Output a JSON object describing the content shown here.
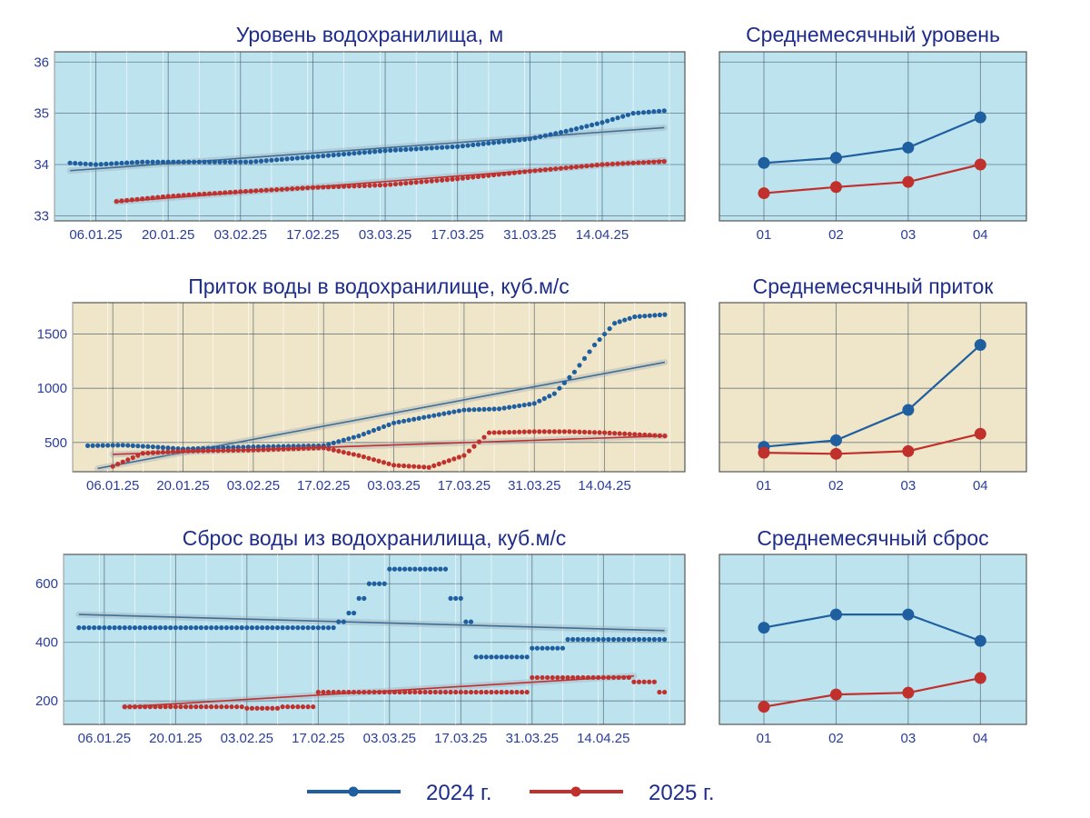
{
  "colors": {
    "blue": "#1f5fa0",
    "red": "#c0302c",
    "panel_blue": "#bde3ef",
    "panel_tan": "#efe6c9",
    "trend": "#3f6f93"
  },
  "legend": [
    {
      "label": "2024 г.",
      "color": "#1f5fa0"
    },
    {
      "label": "2025 г.",
      "color": "#c0302c"
    }
  ],
  "chart_data": [
    {
      "id": "level_daily",
      "type": "scatter",
      "title": "Уровень водохранилища, м",
      "background": "light-blue",
      "grid": true,
      "x_type": "date",
      "xlim": [
        "2024-12-29",
        "2025-04-30"
      ],
      "x_ticks": [
        {
          "label": "06.01.25",
          "date": "2025-01-06"
        },
        {
          "label": "20.01.25",
          "date": "2025-01-20"
        },
        {
          "label": "03.02.25",
          "date": "2025-02-03"
        },
        {
          "label": "17.02.25",
          "date": "2025-02-17"
        },
        {
          "label": "03.03.25",
          "date": "2025-03-03"
        },
        {
          "label": "17.03.25",
          "date": "2025-03-17"
        },
        {
          "label": "31.03.25",
          "date": "2025-03-31"
        },
        {
          "label": "14.04.25",
          "date": "2025-04-14"
        }
      ],
      "y_ticks": [
        33,
        34,
        35,
        36
      ],
      "ylim": [
        32.9,
        36.2
      ],
      "series": [
        {
          "name": "2024 г.",
          "color": "#1f5fa0",
          "x_start": "2025-01-01",
          "x_end": "2025-04-26",
          "interp": "linear",
          "points": [
            [
              "2025-01-01",
              34.03
            ],
            [
              "2025-01-06",
              34.0
            ],
            [
              "2025-01-15",
              34.05
            ],
            [
              "2025-01-25",
              34.05
            ],
            [
              "2025-02-05",
              34.05
            ],
            [
              "2025-02-17",
              34.15
            ],
            [
              "2025-03-03",
              34.27
            ],
            [
              "2025-03-17",
              34.35
            ],
            [
              "2025-03-31",
              34.5
            ],
            [
              "2025-04-07",
              34.65
            ],
            [
              "2025-04-14",
              34.82
            ],
            [
              "2025-04-20",
              35.0
            ],
            [
              "2025-04-26",
              35.05
            ]
          ]
        },
        {
          "name": "2025 г.",
          "color": "#c0302c",
          "x_start": "2025-01-10",
          "x_end": "2025-04-26",
          "interp": "linear",
          "points": [
            [
              "2025-01-10",
              33.28
            ],
            [
              "2025-01-20",
              33.38
            ],
            [
              "2025-02-03",
              33.47
            ],
            [
              "2025-02-17",
              33.55
            ],
            [
              "2025-03-03",
              33.6
            ],
            [
              "2025-03-17",
              33.72
            ],
            [
              "2025-03-31",
              33.87
            ],
            [
              "2025-04-14",
              34.0
            ],
            [
              "2025-04-26",
              34.06
            ]
          ]
        }
      ],
      "trends": [
        {
          "color": "#3f6f93",
          "from": [
            "2025-01-01",
            33.88
          ],
          "to": [
            "2025-04-26",
            34.72
          ]
        },
        {
          "color": "#c0302c",
          "from": [
            "2025-01-10",
            33.27
          ],
          "to": [
            "2025-04-26",
            34.08
          ]
        }
      ]
    },
    {
      "id": "level_monthly",
      "type": "line",
      "title": "Среднемесячный уровень",
      "background": "light-blue",
      "grid": true,
      "categories": [
        "01",
        "02",
        "03",
        "04"
      ],
      "ylim": [
        32.9,
        36.2
      ],
      "y_grid": [
        33,
        34,
        35,
        36
      ],
      "series": [
        {
          "name": "2024 г.",
          "color": "#1f5fa0",
          "values": [
            34.03,
            34.13,
            34.33,
            34.92
          ]
        },
        {
          "name": "2025 г.",
          "color": "#c0302c",
          "values": [
            33.44,
            33.56,
            33.66,
            34.0
          ]
        }
      ]
    },
    {
      "id": "inflow_daily",
      "type": "scatter",
      "title": "Приток воды в водохранилище, куб.м/с",
      "background": "tan",
      "grid": true,
      "x_type": "date",
      "xlim": [
        "2024-12-29",
        "2025-04-30"
      ],
      "x_ticks": [
        {
          "label": "06.01.25",
          "date": "2025-01-06"
        },
        {
          "label": "20.01.25",
          "date": "2025-01-20"
        },
        {
          "label": "03.02.25",
          "date": "2025-02-03"
        },
        {
          "label": "17.02.25",
          "date": "2025-02-17"
        },
        {
          "label": "03.03.25",
          "date": "2025-03-03"
        },
        {
          "label": "17.03.25",
          "date": "2025-03-17"
        },
        {
          "label": "31.03.25",
          "date": "2025-03-31"
        },
        {
          "label": "14.04.25",
          "date": "2025-04-14"
        }
      ],
      "y_ticks": [
        500,
        1000,
        1500
      ],
      "ylim": [
        230,
        1790
      ],
      "series": [
        {
          "name": "2024 г.",
          "color": "#1f5fa0",
          "x_start": "2025-01-01",
          "x_end": "2025-04-26",
          "interp": "linear",
          "points": [
            [
              "2025-01-01",
              470
            ],
            [
              "2025-01-08",
              475
            ],
            [
              "2025-01-14",
              460
            ],
            [
              "2025-01-20",
              440
            ],
            [
              "2025-02-03",
              460
            ],
            [
              "2025-02-17",
              470
            ],
            [
              "2025-02-24",
              560
            ],
            [
              "2025-03-03",
              680
            ],
            [
              "2025-03-10",
              740
            ],
            [
              "2025-03-17",
              800
            ],
            [
              "2025-03-24",
              810
            ],
            [
              "2025-03-31",
              860
            ],
            [
              "2025-04-04",
              950
            ],
            [
              "2025-04-08",
              1150
            ],
            [
              "2025-04-12",
              1400
            ],
            [
              "2025-04-16",
              1600
            ],
            [
              "2025-04-20",
              1660
            ],
            [
              "2025-04-26",
              1680
            ]
          ]
        },
        {
          "name": "2025 г.",
          "color": "#c0302c",
          "x_start": "2025-01-06",
          "x_end": "2025-04-26",
          "interp": "linear",
          "points": [
            [
              "2025-01-06",
              280
            ],
            [
              "2025-01-12",
              400
            ],
            [
              "2025-01-20",
              420
            ],
            [
              "2025-02-03",
              430
            ],
            [
              "2025-02-17",
              450
            ],
            [
              "2025-02-24",
              380
            ],
            [
              "2025-03-03",
              290
            ],
            [
              "2025-03-10",
              270
            ],
            [
              "2025-03-17",
              380
            ],
            [
              "2025-03-22",
              590
            ],
            [
              "2025-03-31",
              600
            ],
            [
              "2025-04-07",
              600
            ],
            [
              "2025-04-14",
              590
            ],
            [
              "2025-04-26",
              560
            ]
          ]
        }
      ],
      "trends": [
        {
          "color": "#3f6f93",
          "from": [
            "2025-01-03",
            260
          ],
          "to": [
            "2025-04-26",
            1240
          ]
        },
        {
          "color": "#c0302c",
          "from": [
            "2025-01-06",
            390
          ],
          "to": [
            "2025-04-26",
            560
          ]
        }
      ]
    },
    {
      "id": "inflow_monthly",
      "type": "line",
      "title": "Среднемесячный приток",
      "background": "tan",
      "grid": true,
      "categories": [
        "01",
        "02",
        "03",
        "04"
      ],
      "ylim": [
        230,
        1790
      ],
      "y_grid": [
        500,
        1000,
        1500
      ],
      "series": [
        {
          "name": "2024 г.",
          "color": "#1f5fa0",
          "values": [
            460,
            520,
            800,
            1400
          ]
        },
        {
          "name": "2025 г.",
          "color": "#c0302c",
          "values": [
            405,
            395,
            420,
            580
          ]
        }
      ]
    },
    {
      "id": "outflow_daily",
      "type": "scatter",
      "title": "Сброс воды из водохранилища, куб.м/с",
      "background": "light-blue",
      "grid": true,
      "x_type": "date",
      "xlim": [
        "2024-12-29",
        "2025-04-30"
      ],
      "x_ticks": [
        {
          "label": "06.01.25",
          "date": "2025-01-06"
        },
        {
          "label": "20.01.25",
          "date": "2025-01-20"
        },
        {
          "label": "03.02.25",
          "date": "2025-02-03"
        },
        {
          "label": "17.02.25",
          "date": "2025-02-17"
        },
        {
          "label": "03.03.25",
          "date": "2025-03-03"
        },
        {
          "label": "17.03.25",
          "date": "2025-03-17"
        },
        {
          "label": "31.03.25",
          "date": "2025-03-31"
        },
        {
          "label": "14.04.25",
          "date": "2025-04-14"
        }
      ],
      "y_ticks": [
        200,
        400,
        600
      ],
      "ylim": [
        120,
        700
      ],
      "series": [
        {
          "name": "2024 г.",
          "color": "#1f5fa0",
          "x_start": "2025-01-01",
          "x_end": "2025-04-26",
          "interp": "step",
          "points": [
            [
              "2025-01-01",
              450
            ],
            [
              "2025-02-21",
              470
            ],
            [
              "2025-02-23",
              500
            ],
            [
              "2025-02-25",
              550
            ],
            [
              "2025-02-27",
              600
            ],
            [
              "2025-03-03",
              650
            ],
            [
              "2025-03-15",
              550
            ],
            [
              "2025-03-18",
              470
            ],
            [
              "2025-03-20",
              350
            ],
            [
              "2025-03-31",
              380
            ],
            [
              "2025-04-07",
              410
            ]
          ]
        },
        {
          "name": "2025 г.",
          "color": "#c0302c",
          "x_start": "2025-01-10",
          "x_end": "2025-04-26",
          "interp": "step",
          "points": [
            [
              "2025-01-10",
              180
            ],
            [
              "2025-02-03",
              175
            ],
            [
              "2025-02-10",
              180
            ],
            [
              "2025-02-17",
              230
            ],
            [
              "2025-03-31",
              280
            ],
            [
              "2025-04-20",
              265
            ],
            [
              "2025-04-25",
              230
            ]
          ]
        }
      ],
      "trends": [
        {
          "color": "#3f6f93",
          "from": [
            "2025-01-01",
            495
          ],
          "to": [
            "2025-04-26",
            440
          ]
        },
        {
          "color": "#c0302c",
          "from": [
            "2025-01-10",
            180
          ],
          "to": [
            "2025-04-20",
            285
          ]
        }
      ]
    },
    {
      "id": "outflow_monthly",
      "type": "line",
      "title": "Среднемесячный сброс",
      "background": "light-blue",
      "grid": true,
      "categories": [
        "01",
        "02",
        "03",
        "04"
      ],
      "ylim": [
        120,
        700
      ],
      "y_grid": [
        200,
        400,
        600
      ],
      "series": [
        {
          "name": "2024 г.",
          "color": "#1f5fa0",
          "values": [
            450,
            495,
            495,
            405
          ]
        },
        {
          "name": "2025 г.",
          "color": "#c0302c",
          "values": [
            180,
            222,
            228,
            278
          ]
        }
      ]
    }
  ]
}
